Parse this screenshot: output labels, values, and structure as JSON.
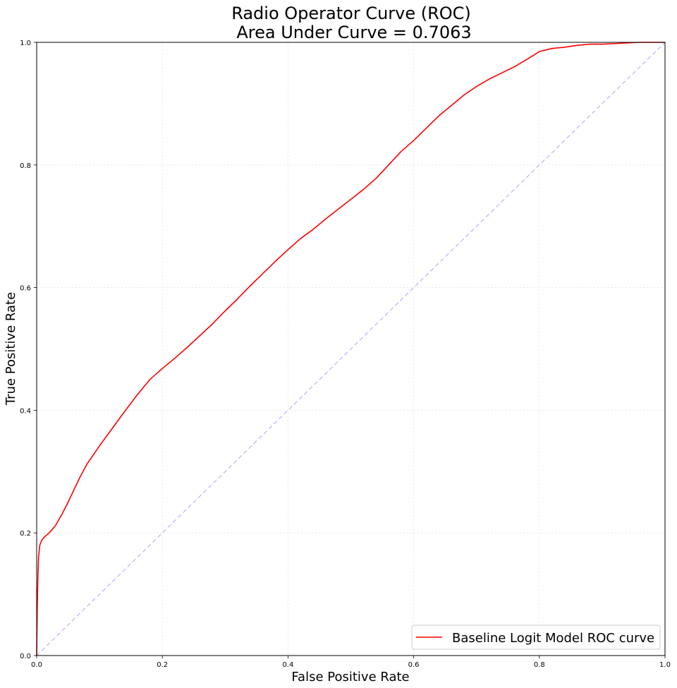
{
  "chart_data": {
    "type": "line",
    "title": "Radio Operator Curve (ROC)",
    "subtitle": "Area Under Curve = 0.7063",
    "xlabel": "False Positive Rate",
    "ylabel": "True Positive Rate",
    "xlim": [
      0,
      1
    ],
    "ylim": [
      0,
      1
    ],
    "xticks": [
      "0.0",
      "0.2",
      "0.4",
      "0.6",
      "0.8",
      "1.0"
    ],
    "yticks": [
      "0.0",
      "0.2",
      "0.4",
      "0.6",
      "0.8",
      "1.0"
    ],
    "grid": true,
    "legend_position": "lower-right",
    "series": [
      {
        "name": "Baseline Logit Model ROC curve",
        "color": "#ff0000",
        "x": [
          0.0,
          0.001,
          0.002,
          0.003,
          0.005,
          0.008,
          0.012,
          0.02,
          0.03,
          0.04,
          0.05,
          0.06,
          0.07,
          0.08,
          0.09,
          0.1,
          0.12,
          0.14,
          0.16,
          0.18,
          0.2,
          0.22,
          0.24,
          0.26,
          0.28,
          0.3,
          0.32,
          0.34,
          0.36,
          0.38,
          0.4,
          0.42,
          0.44,
          0.46,
          0.48,
          0.5,
          0.52,
          0.54,
          0.56,
          0.58,
          0.6,
          0.62,
          0.64,
          0.66,
          0.68,
          0.7,
          0.72,
          0.74,
          0.76,
          0.78,
          0.8,
          0.82,
          0.84,
          0.86,
          0.88,
          0.9,
          0.92,
          0.94,
          0.96,
          0.98,
          1.0
        ],
        "y": [
          0.0,
          0.08,
          0.13,
          0.16,
          0.18,
          0.188,
          0.193,
          0.2,
          0.212,
          0.23,
          0.25,
          0.272,
          0.293,
          0.312,
          0.327,
          0.342,
          0.37,
          0.398,
          0.425,
          0.45,
          0.468,
          0.485,
          0.503,
          0.522,
          0.541,
          0.562,
          0.582,
          0.603,
          0.623,
          0.643,
          0.662,
          0.68,
          0.695,
          0.712,
          0.728,
          0.744,
          0.76,
          0.778,
          0.8,
          0.822,
          0.84,
          0.86,
          0.88,
          0.897,
          0.914,
          0.928,
          0.94,
          0.95,
          0.96,
          0.972,
          0.985,
          0.99,
          0.992,
          0.995,
          0.997,
          0.997,
          0.998,
          0.999,
          1.0,
          1.0,
          1.0
        ]
      },
      {
        "name": "",
        "color": "#b3b3ff",
        "style": "dashed",
        "x": [
          0,
          1
        ],
        "y": [
          0,
          1
        ]
      }
    ]
  }
}
